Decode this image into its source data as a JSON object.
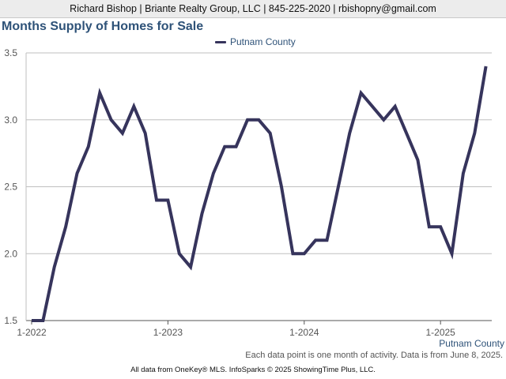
{
  "header": {
    "text": "Richard Bishop | Briante Realty Group, LLC | 845-225-2020 | rbishopny@gmail.com"
  },
  "footer": {
    "note": "Each data point is one month of activity. Data is from June 8, 2025.",
    "credits": "All data from OneKey® MLS. InfoSparks © 2025 ShowingTime Plus, LLC."
  },
  "chart_data": {
    "type": "line",
    "title": "Months Supply of Homes for Sale",
    "xlabel": "",
    "ylabel": "",
    "ylim": [
      1.5,
      3.5
    ],
    "yticks": [
      "1.5",
      "2.0",
      "2.5",
      "3.0",
      "3.5"
    ],
    "xticks": [
      "1-2022",
      "1-2023",
      "1-2024",
      "1-2025"
    ],
    "grid": true,
    "legend_position": "top-center",
    "x": [
      "2022-01",
      "2022-02",
      "2022-03",
      "2022-04",
      "2022-05",
      "2022-06",
      "2022-07",
      "2022-08",
      "2022-09",
      "2022-10",
      "2022-11",
      "2022-12",
      "2023-01",
      "2023-02",
      "2023-03",
      "2023-04",
      "2023-05",
      "2023-06",
      "2023-07",
      "2023-08",
      "2023-09",
      "2023-10",
      "2023-11",
      "2023-12",
      "2024-01",
      "2024-02",
      "2024-03",
      "2024-04",
      "2024-05",
      "2024-06",
      "2024-07",
      "2024-08",
      "2024-09",
      "2024-10",
      "2024-11",
      "2024-12",
      "2025-01",
      "2025-02",
      "2025-03",
      "2025-04",
      "2025-05"
    ],
    "series": [
      {
        "name": "Putnam County",
        "color": "#36345c",
        "values": [
          1.5,
          1.5,
          1.9,
          2.2,
          2.6,
          2.8,
          3.2,
          3.0,
          2.9,
          3.1,
          2.9,
          2.4,
          2.4,
          2.0,
          1.9,
          2.3,
          2.6,
          2.8,
          2.8,
          3.0,
          3.0,
          2.9,
          2.5,
          2.0,
          2.0,
          2.1,
          2.1,
          2.5,
          2.9,
          3.2,
          3.1,
          3.0,
          3.1,
          2.9,
          2.7,
          2.2,
          2.2,
          2.0,
          2.6,
          2.9,
          3.4
        ]
      }
    ]
  }
}
